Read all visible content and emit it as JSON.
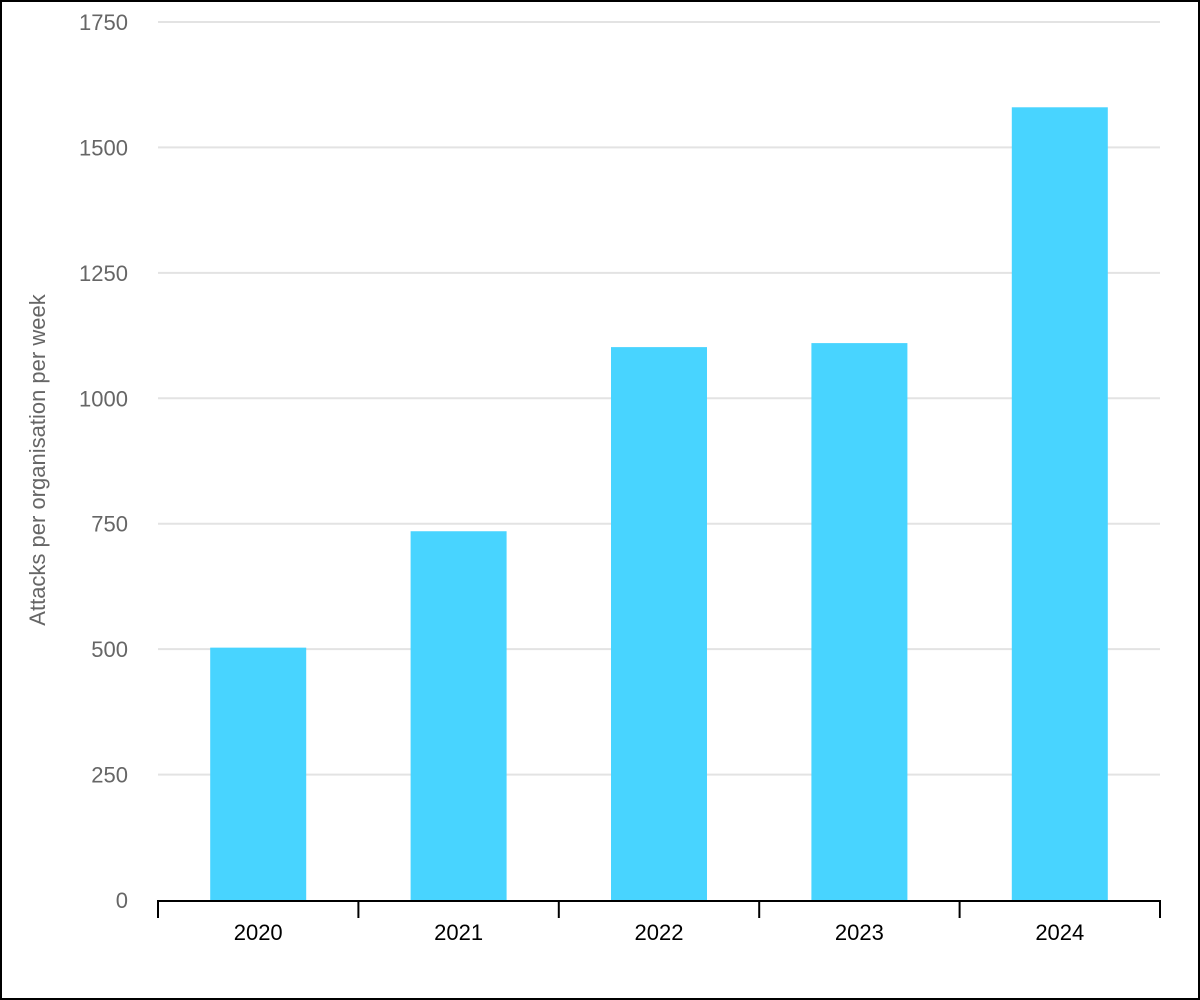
{
  "chart_data": {
    "type": "bar",
    "title": "",
    "xlabel": "",
    "ylabel": "Attacks per organisation per week",
    "categories": [
      "2020",
      "2021",
      "2022",
      "2023",
      "2024"
    ],
    "values": [
      503,
      735,
      1102,
      1110,
      1580
    ],
    "ylim": [
      0,
      1750
    ],
    "yticks": [
      0,
      250,
      500,
      750,
      1000,
      1250,
      1500,
      1750
    ],
    "grid": true,
    "legend": "none",
    "colors": {
      "bar": "#48D4FF",
      "grid": "#e3e3e3",
      "axis": "#000000",
      "tick_label": "#666666"
    }
  }
}
